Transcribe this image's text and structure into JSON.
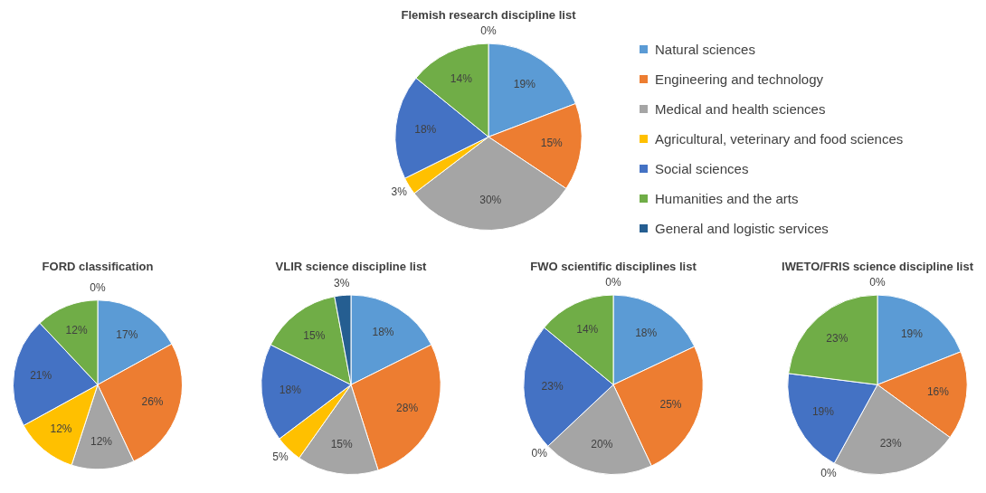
{
  "chart_data": [
    {
      "type": "pie",
      "title": "Flemish research discipline list",
      "legend": "right",
      "categories": [
        "Natural sciences",
        "Engineering and technology",
        "Medical and health sciences",
        "Agricultural, veterinary and food sciences",
        "Social sciences",
        "Humanities and the arts",
        "General and logistic services"
      ],
      "values": [
        19,
        15,
        30,
        3,
        18,
        14,
        0
      ],
      "value_labels": [
        "19%",
        "15%",
        "30%",
        "3%",
        "18%",
        "14%",
        "0%"
      ],
      "colors": [
        "#5b9bd5",
        "#ed7d31",
        "#a5a5a5",
        "#ffc000",
        "#4472c4",
        "#70ad47",
        "#255e91"
      ]
    },
    {
      "type": "pie",
      "title": "FORD classification",
      "categories": [
        null,
        null,
        null,
        null,
        null,
        null,
        null
      ],
      "values": [
        17,
        26,
        12,
        12,
        21,
        12,
        0
      ],
      "value_labels": [
        "17%",
        "26%",
        "12%",
        "12%",
        "21%",
        "12%",
        "0%"
      ],
      "colors": [
        "#5b9bd5",
        "#ed7d31",
        "#a5a5a5",
        "#ffc000",
        "#4472c4",
        "#70ad47",
        "#255e91"
      ]
    },
    {
      "type": "pie",
      "title": "VLIR science discipline list",
      "categories": [
        null,
        null,
        null,
        null,
        null,
        null,
        null
      ],
      "values": [
        18,
        28,
        15,
        5,
        18,
        15,
        3
      ],
      "value_labels": [
        "18%",
        "28%",
        "15%",
        "5%",
        "18%",
        "15%",
        "3%"
      ],
      "colors": [
        "#5b9bd5",
        "#ed7d31",
        "#a5a5a5",
        "#ffc000",
        "#4472c4",
        "#70ad47",
        "#255e91"
      ]
    },
    {
      "type": "pie",
      "title": "FWO scientific disciplines list",
      "categories": [
        null,
        null,
        null,
        null,
        null,
        null,
        null
      ],
      "values": [
        18,
        25,
        20,
        0,
        23,
        14,
        0
      ],
      "value_labels": [
        "18%",
        "25%",
        "20%",
        "0%",
        "23%",
        "14%",
        "0%"
      ],
      "colors": [
        "#5b9bd5",
        "#ed7d31",
        "#a5a5a5",
        "#ffc000",
        "#4472c4",
        "#70ad47",
        "#255e91"
      ]
    },
    {
      "type": "pie",
      "title": "IWETO/FRIS science discipline list",
      "categories": [
        null,
        null,
        null,
        null,
        null,
        null,
        null
      ],
      "values": [
        19,
        16,
        23,
        0,
        19,
        23,
        0
      ],
      "value_labels": [
        "19%",
        "16%",
        "23%",
        "0%",
        "19%",
        "23%",
        "0%"
      ],
      "colors": [
        "#5b9bd5",
        "#ed7d31",
        "#a5a5a5",
        "#ffc000",
        "#4472c4",
        "#70ad47",
        "#255e91"
      ]
    }
  ]
}
